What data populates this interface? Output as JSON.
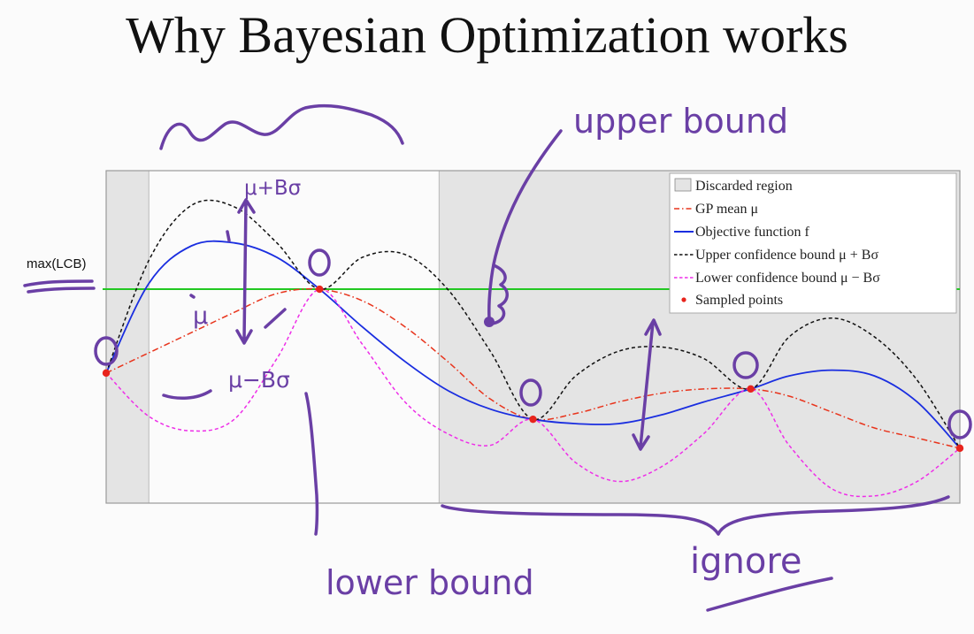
{
  "slide": {
    "title": "Why Bayesian Optimization works"
  },
  "chart_data": {
    "type": "line",
    "title": "",
    "xlabel": "",
    "ylabel": "",
    "grid": false,
    "legend_position": "top-right",
    "xlim": [
      0,
      1
    ],
    "ylim": [
      -1.1,
      1.2
    ],
    "reference_line": {
      "label": "max(LCB)",
      "y": 0.38,
      "color": "#22c822"
    },
    "discarded_regions": [
      [
        0,
        0.05
      ],
      [
        0.39,
        1.0
      ]
    ],
    "legend": [
      "Discarded region",
      "GP mean μ",
      "Objective function f",
      "Upper confidence bound μ + Bσ",
      "Lower confidence bound μ − Bσ",
      "Sampled points"
    ],
    "sampled_points": {
      "name": "Sampled points",
      "color": "#e8241c",
      "x": [
        0.0,
        0.25,
        0.5,
        0.755,
        1.0
      ],
      "y": [
        -0.2,
        0.38,
        -0.52,
        -0.31,
        -0.72
      ]
    },
    "series": [
      {
        "name": "GP mean μ",
        "color": "#e8341c",
        "style": "dashdot",
        "x": [
          0.0,
          0.05,
          0.1,
          0.15,
          0.2,
          0.25,
          0.3,
          0.35,
          0.4,
          0.45,
          0.5,
          0.55,
          0.6,
          0.65,
          0.7,
          0.755,
          0.8,
          0.85,
          0.9,
          0.95,
          1.0
        ],
        "y": [
          -0.2,
          -0.06,
          0.08,
          0.22,
          0.35,
          0.38,
          0.3,
          0.12,
          -0.12,
          -0.38,
          -0.52,
          -0.48,
          -0.4,
          -0.34,
          -0.31,
          -0.31,
          -0.36,
          -0.47,
          -0.58,
          -0.65,
          -0.72
        ]
      },
      {
        "name": "Objective function f",
        "color": "#1a2ee0",
        "style": "solid",
        "x": [
          0.0,
          0.05,
          0.1,
          0.15,
          0.2,
          0.25,
          0.3,
          0.35,
          0.4,
          0.45,
          0.5,
          0.55,
          0.6,
          0.65,
          0.7,
          0.755,
          0.8,
          0.85,
          0.9,
          0.95,
          1.0
        ],
        "y": [
          -0.2,
          0.42,
          0.68,
          0.7,
          0.6,
          0.38,
          0.12,
          -0.12,
          -0.32,
          -0.45,
          -0.52,
          -0.55,
          -0.55,
          -0.49,
          -0.4,
          -0.31,
          -0.22,
          -0.18,
          -0.22,
          -0.4,
          -0.72
        ]
      },
      {
        "name": "Upper confidence bound μ + Bσ",
        "color": "#111111",
        "style": "dashed",
        "x": [
          0.0,
          0.05,
          0.1,
          0.15,
          0.2,
          0.25,
          0.3,
          0.35,
          0.4,
          0.45,
          0.5,
          0.55,
          0.6,
          0.65,
          0.7,
          0.755,
          0.8,
          0.85,
          0.9,
          0.95,
          1.0
        ],
        "y": [
          -0.2,
          0.58,
          0.96,
          0.95,
          0.7,
          0.38,
          0.6,
          0.62,
          0.38,
          -0.05,
          -0.52,
          -0.22,
          -0.05,
          -0.02,
          -0.1,
          -0.31,
          0.05,
          0.18,
          0.05,
          -0.25,
          -0.72
        ]
      },
      {
        "name": "Lower confidence bound μ − Bσ",
        "color": "#ee2ee8",
        "style": "dashed",
        "x": [
          0.0,
          0.05,
          0.1,
          0.15,
          0.2,
          0.25,
          0.3,
          0.35,
          0.4,
          0.45,
          0.5,
          0.55,
          0.6,
          0.65,
          0.7,
          0.755,
          0.8,
          0.85,
          0.9,
          0.95,
          1.0
        ],
        "y": [
          -0.2,
          -0.5,
          -0.6,
          -0.52,
          -0.1,
          0.38,
          0.0,
          -0.4,
          -0.62,
          -0.7,
          -0.52,
          -0.82,
          -0.95,
          -0.85,
          -0.62,
          -0.31,
          -0.7,
          -1.0,
          -1.05,
          -0.95,
          -0.72
        ]
      }
    ]
  },
  "annotations": {
    "mu_plus": "μ+Bσ",
    "mu": "μ",
    "mu_minus": "μ−Bσ",
    "upper_bound": "upper bound",
    "lower_bound": "lower bound",
    "ignore": "ignore"
  }
}
